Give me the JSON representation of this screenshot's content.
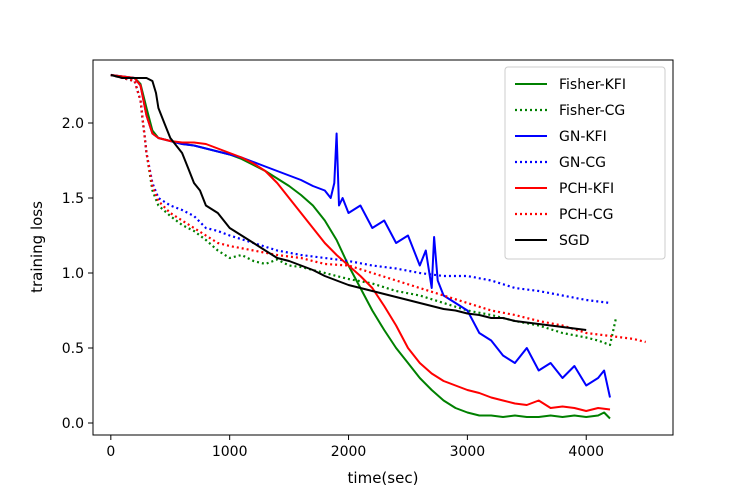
{
  "chart_data": {
    "type": "line",
    "title": "",
    "xlabel": "time(sec)",
    "ylabel": "training loss",
    "xlim": [
      -150,
      4730
    ],
    "ylim": [
      -0.08,
      2.42
    ],
    "xticks": [
      0,
      1000,
      2000,
      3000,
      4000
    ],
    "xtick_labels": [
      "0",
      "1000",
      "2000",
      "3000",
      "4000"
    ],
    "yticks": [
      0.0,
      0.5,
      1.0,
      1.5,
      2.0
    ],
    "ytick_labels": [
      "0.0",
      "0.5",
      "1.0",
      "1.5",
      "2.0"
    ],
    "grid": false,
    "legend_position": "top-right",
    "series": [
      {
        "name": "Fisher-KFI",
        "color": "#008000",
        "style": "solid",
        "x": [
          0,
          100,
          200,
          250,
          300,
          350,
          400,
          500,
          600,
          700,
          800,
          900,
          1000,
          1100,
          1200,
          1300,
          1400,
          1500,
          1600,
          1700,
          1800,
          1900,
          2000,
          2100,
          2200,
          2300,
          2400,
          2500,
          2600,
          2700,
          2800,
          2900,
          3000,
          3100,
          3200,
          3300,
          3400,
          3500,
          3600,
          3700,
          3800,
          3900,
          4000,
          4100,
          4150,
          4200
        ],
        "y": [
          2.32,
          2.31,
          2.3,
          2.26,
          2.1,
          1.95,
          1.9,
          1.88,
          1.86,
          1.85,
          1.83,
          1.81,
          1.79,
          1.76,
          1.72,
          1.68,
          1.63,
          1.58,
          1.52,
          1.45,
          1.35,
          1.22,
          1.05,
          0.9,
          0.75,
          0.62,
          0.5,
          0.4,
          0.3,
          0.22,
          0.15,
          0.1,
          0.07,
          0.05,
          0.05,
          0.04,
          0.05,
          0.04,
          0.04,
          0.05,
          0.04,
          0.05,
          0.04,
          0.05,
          0.07,
          0.03
        ]
      },
      {
        "name": "Fisher-CG",
        "color": "#008000",
        "style": "dotted",
        "x": [
          0,
          100,
          200,
          250,
          300,
          350,
          400,
          500,
          600,
          700,
          800,
          900,
          1000,
          1100,
          1200,
          1300,
          1400,
          1500,
          1600,
          1700,
          1800,
          1900,
          2000,
          2200,
          2400,
          2600,
          2800,
          3000,
          3200,
          3400,
          3600,
          3800,
          4000,
          4100,
          4200,
          4250
        ],
        "y": [
          2.32,
          2.3,
          2.28,
          2.15,
          1.8,
          1.55,
          1.45,
          1.38,
          1.32,
          1.28,
          1.22,
          1.15,
          1.1,
          1.12,
          1.08,
          1.06,
          1.09,
          1.05,
          1.04,
          1.02,
          1.0,
          0.98,
          0.96,
          0.93,
          0.88,
          0.85,
          0.8,
          0.75,
          0.72,
          0.68,
          0.65,
          0.6,
          0.57,
          0.55,
          0.52,
          0.7
        ]
      },
      {
        "name": "GN-KFI",
        "color": "#0000ff",
        "style": "solid",
        "x": [
          0,
          100,
          200,
          250,
          300,
          350,
          400,
          500,
          600,
          700,
          800,
          900,
          1000,
          1100,
          1200,
          1300,
          1400,
          1500,
          1600,
          1700,
          1800,
          1850,
          1880,
          1900,
          1920,
          1950,
          2000,
          2100,
          2200,
          2300,
          2400,
          2500,
          2600,
          2650,
          2700,
          2720,
          2750,
          2800,
          2900,
          3000,
          3100,
          3200,
          3300,
          3400,
          3500,
          3600,
          3700,
          3800,
          3900,
          4000,
          4100,
          4150,
          4200
        ],
        "y": [
          2.32,
          2.31,
          2.3,
          2.25,
          2.05,
          1.93,
          1.9,
          1.88,
          1.86,
          1.85,
          1.83,
          1.81,
          1.79,
          1.77,
          1.74,
          1.71,
          1.68,
          1.65,
          1.62,
          1.58,
          1.55,
          1.5,
          1.6,
          1.93,
          1.45,
          1.5,
          1.4,
          1.45,
          1.3,
          1.35,
          1.2,
          1.25,
          1.05,
          1.15,
          0.9,
          1.24,
          0.95,
          0.85,
          0.8,
          0.75,
          0.6,
          0.55,
          0.45,
          0.4,
          0.5,
          0.35,
          0.4,
          0.3,
          0.38,
          0.25,
          0.3,
          0.35,
          0.17
        ]
      },
      {
        "name": "GN-CG",
        "color": "#0000ff",
        "style": "dotted",
        "x": [
          0,
          100,
          200,
          250,
          300,
          350,
          400,
          500,
          600,
          700,
          800,
          900,
          1000,
          1200,
          1400,
          1600,
          1800,
          2000,
          2200,
          2400,
          2600,
          2800,
          3000,
          3200,
          3400,
          3600,
          3800,
          4000,
          4200
        ],
        "y": [
          2.32,
          2.3,
          2.28,
          2.15,
          1.8,
          1.6,
          1.5,
          1.45,
          1.42,
          1.38,
          1.3,
          1.28,
          1.25,
          1.2,
          1.15,
          1.12,
          1.1,
          1.08,
          1.05,
          1.03,
          1.0,
          0.98,
          0.98,
          0.95,
          0.9,
          0.88,
          0.85,
          0.82,
          0.8
        ]
      },
      {
        "name": "PCH-KFI",
        "color": "#ff0000",
        "style": "solid",
        "x": [
          0,
          100,
          200,
          250,
          300,
          350,
          400,
          500,
          600,
          700,
          800,
          900,
          1000,
          1100,
          1200,
          1300,
          1400,
          1500,
          1600,
          1700,
          1800,
          1900,
          2000,
          2100,
          2200,
          2300,
          2400,
          2500,
          2600,
          2700,
          2800,
          2900,
          3000,
          3100,
          3200,
          3300,
          3400,
          3500,
          3600,
          3700,
          3800,
          3900,
          4000,
          4100,
          4200
        ],
        "y": [
          2.32,
          2.31,
          2.3,
          2.25,
          2.05,
          1.93,
          1.9,
          1.88,
          1.87,
          1.87,
          1.86,
          1.83,
          1.8,
          1.77,
          1.73,
          1.68,
          1.6,
          1.5,
          1.4,
          1.3,
          1.2,
          1.12,
          1.05,
          0.98,
          0.9,
          0.78,
          0.65,
          0.5,
          0.4,
          0.33,
          0.28,
          0.25,
          0.22,
          0.2,
          0.17,
          0.15,
          0.13,
          0.12,
          0.15,
          0.1,
          0.11,
          0.1,
          0.08,
          0.1,
          0.09
        ]
      },
      {
        "name": "PCH-CG",
        "color": "#ff0000",
        "style": "dotted",
        "x": [
          0,
          100,
          200,
          250,
          300,
          350,
          400,
          500,
          600,
          700,
          800,
          900,
          1000,
          1200,
          1400,
          1600,
          1800,
          2000,
          2200,
          2400,
          2600,
          2800,
          3000,
          3200,
          3400,
          3600,
          3800,
          4000,
          4200,
          4400,
          4500
        ],
        "y": [
          2.32,
          2.3,
          2.28,
          2.15,
          1.8,
          1.58,
          1.48,
          1.4,
          1.35,
          1.3,
          1.25,
          1.2,
          1.18,
          1.15,
          1.12,
          1.1,
          1.06,
          1.05,
          1.0,
          0.95,
          0.9,
          0.85,
          0.8,
          0.75,
          0.72,
          0.68,
          0.65,
          0.6,
          0.58,
          0.56,
          0.54
        ]
      },
      {
        "name": "SGD",
        "color": "#000000",
        "style": "solid",
        "x": [
          0,
          50,
          100,
          200,
          300,
          350,
          380,
          400,
          450,
          500,
          550,
          600,
          650,
          700,
          750,
          800,
          900,
          1000,
          1100,
          1200,
          1300,
          1400,
          1500,
          1600,
          1700,
          1800,
          1900,
          2000,
          2100,
          2200,
          2300,
          2400,
          2500,
          2600,
          2700,
          2800,
          2900,
          3000,
          3100,
          3200,
          3300,
          3400,
          3500,
          3600,
          3700,
          3800,
          3900,
          4000
        ],
        "y": [
          2.32,
          2.31,
          2.3,
          2.3,
          2.3,
          2.28,
          2.2,
          2.1,
          2.0,
          1.9,
          1.85,
          1.8,
          1.7,
          1.6,
          1.55,
          1.45,
          1.4,
          1.3,
          1.25,
          1.2,
          1.15,
          1.1,
          1.08,
          1.05,
          1.02,
          0.98,
          0.95,
          0.92,
          0.9,
          0.88,
          0.86,
          0.84,
          0.82,
          0.8,
          0.78,
          0.76,
          0.75,
          0.73,
          0.72,
          0.7,
          0.7,
          0.68,
          0.67,
          0.66,
          0.65,
          0.64,
          0.63,
          0.62
        ]
      }
    ]
  }
}
